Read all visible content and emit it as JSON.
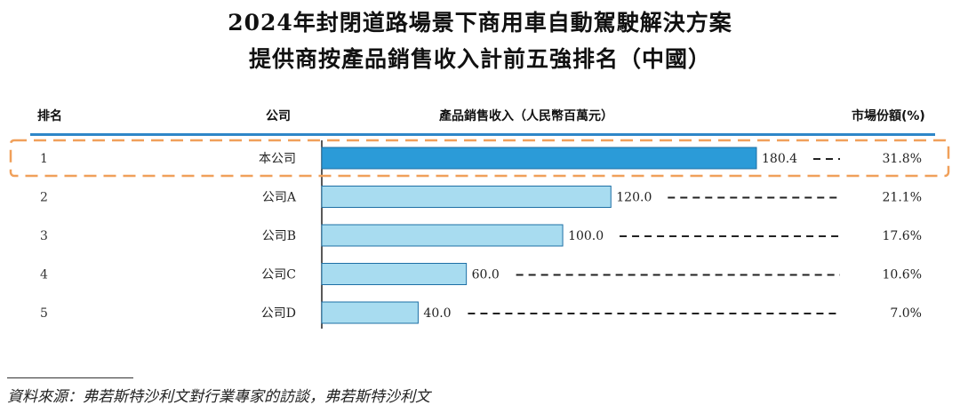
{
  "title": "2024年封閉道路場景下商用車自動駕駛解決方案",
  "subtitle": "提供商按產品銷售收入計前五強排名（中國）",
  "headers": {
    "rank": "排名",
    "company": "公司",
    "revenue": "產品銷售收入（人民幣百萬元）",
    "share": "市場份額(%)"
  },
  "chart_data": {
    "type": "bar",
    "orientation": "horizontal",
    "rows": [
      {
        "rank": "1",
        "company": "本公司",
        "revenue": 180.4,
        "revenue_label": "180.4",
        "share": "31.8%",
        "highlight": true
      },
      {
        "rank": "2",
        "company": "公司A",
        "revenue": 120.0,
        "revenue_label": "120.0",
        "share": "21.1%",
        "highlight": false
      },
      {
        "rank": "3",
        "company": "公司B",
        "revenue": 100.0,
        "revenue_label": "100.0",
        "share": "17.6%",
        "highlight": false
      },
      {
        "rank": "4",
        "company": "公司C",
        "revenue": 60.0,
        "revenue_label": "60.0",
        "share": "10.6%",
        "highlight": false
      },
      {
        "rank": "5",
        "company": "公司D",
        "revenue": 40.0,
        "revenue_label": "40.0",
        "share": "7.0%",
        "highlight": false
      }
    ],
    "xlim": [
      0,
      180.4
    ],
    "grid": false,
    "colors": {
      "highlight_bar": "#2b9bd8",
      "bar": "#a8dcf0",
      "bar_stroke": "#1d6fa5",
      "highlight_box": "#f0a05a",
      "header_rule": "#2e86c8"
    }
  },
  "source": "資料來源：弗若斯特沙利文對行業專家的訪談，弗若斯特沙利文"
}
